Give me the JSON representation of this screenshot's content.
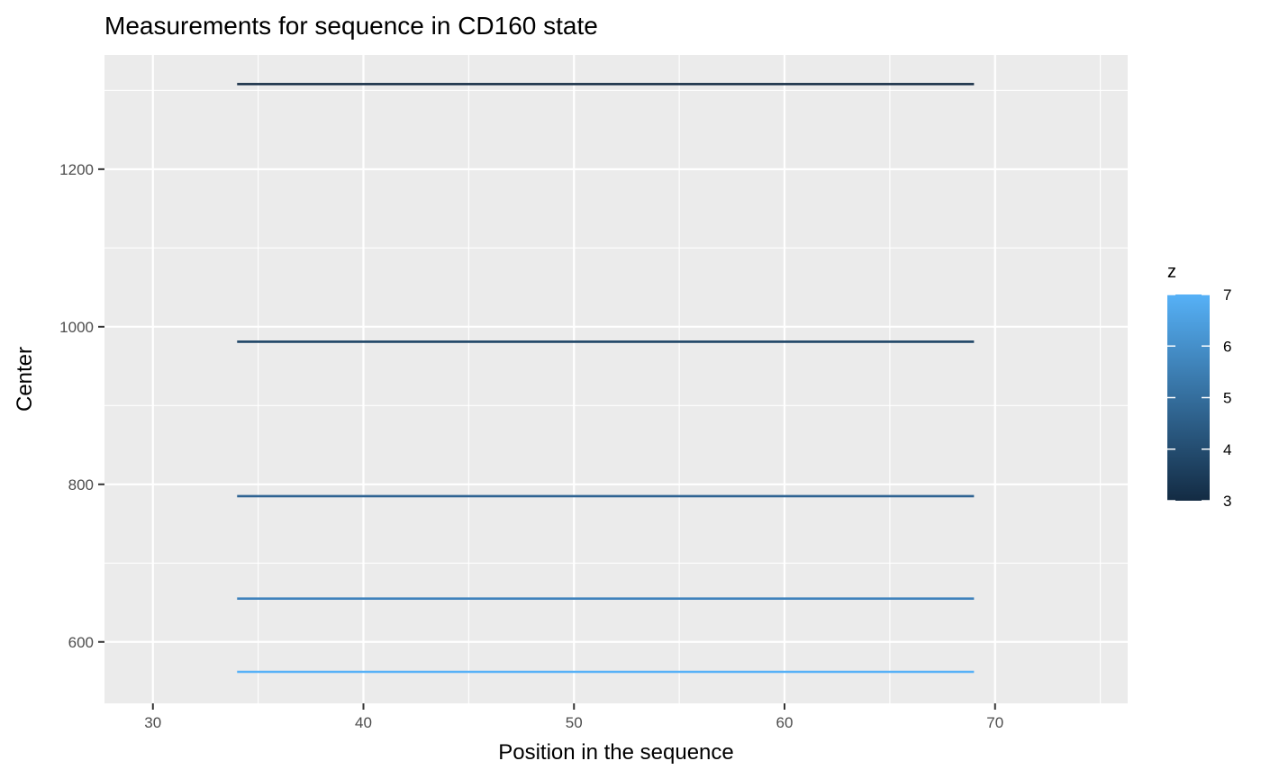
{
  "chart_data": {
    "type": "line",
    "title": "Measurements for sequence in CD160 state",
    "xlabel": "Position in the sequence",
    "ylabel": "Center",
    "xlim": [
      27.7,
      76.3
    ],
    "ylim": [
      522,
      1345
    ],
    "x_ticks": [
      30,
      40,
      50,
      60,
      70
    ],
    "x_tick_labels": [
      "30",
      "40",
      "50",
      "60",
      "70"
    ],
    "y_ticks": [
      600,
      800,
      1000,
      1200
    ],
    "y_tick_labels": [
      "600",
      "800",
      "1000",
      "1200"
    ],
    "grid": true,
    "panel_background": "#ebebeb",
    "grid_color": "#ffffff",
    "series": [
      {
        "x": [
          34,
          69
        ],
        "y": [
          1308,
          1308
        ],
        "z": 3.0,
        "color": "#132b43"
      },
      {
        "x": [
          34,
          69
        ],
        "y": [
          981,
          981
        ],
        "z": 4.0,
        "color": "#1e4566"
      },
      {
        "x": [
          34,
          69
        ],
        "y": [
          785,
          785
        ],
        "z": 5.0,
        "color": "#2e6392"
      },
      {
        "x": [
          34,
          69
        ],
        "y": [
          655,
          655
        ],
        "z": 6.0,
        "color": "#3f82bc"
      },
      {
        "x": [
          34,
          69
        ],
        "y": [
          562,
          562
        ],
        "z": 7.0,
        "color": "#56b1f7"
      }
    ],
    "legend": {
      "title": "z",
      "placement": "right",
      "type": "colorbar",
      "low_color": "#132b43",
      "high_color": "#56b1f7",
      "range": [
        3,
        7
      ],
      "ticks": [
        3,
        4,
        5,
        6,
        7
      ],
      "tick_labels": [
        "3",
        "4",
        "5",
        "6",
        "7"
      ]
    }
  }
}
